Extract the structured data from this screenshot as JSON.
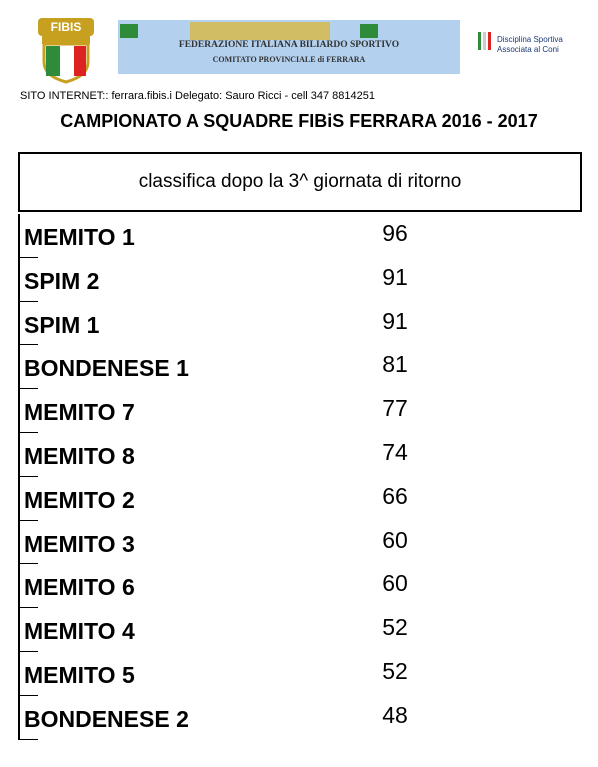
{
  "header": {
    "banner_line1": "FEDERAZIONE ITALIANA BILIARDO SPORTIVO",
    "banner_line2": "COMITATO PROVINCIALE di FERRARA",
    "coni_line1": "Disciplina Sportiva",
    "coni_line2": "Associata al Coni",
    "info": "SITO INTERNET:: ferrara.fibis.i Delegato: Sauro Ricci - cell 347 8814251",
    "title": "CAMPIONATO A SQUADRE FIBiS FERRARA 2016 - 2017"
  },
  "table": {
    "header": "classifica dopo la 3^ giornata di ritorno",
    "rows": [
      [
        "MEMITO 1",
        96
      ],
      [
        "SPIM 2",
        91
      ],
      [
        "SPIM 1",
        91
      ],
      [
        "BONDENESE 1",
        81
      ],
      [
        "MEMITO 7",
        77
      ],
      [
        "MEMITO 8",
        74
      ],
      [
        "MEMITO 2",
        66
      ],
      [
        "MEMITO 3",
        60
      ],
      [
        "MEMITO 6",
        60
      ],
      [
        "MEMITO 4",
        52
      ],
      [
        "MEMITO 5",
        52
      ],
      [
        "BONDENESE 2",
        48
      ]
    ]
  }
}
